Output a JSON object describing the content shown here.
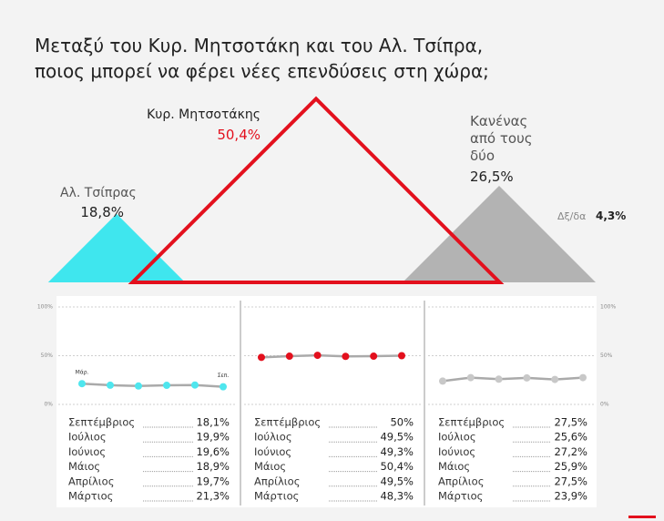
{
  "title": [
    "Μεταξύ του Κυρ. Μητσοτάκη και του Αλ. Τσίπρα,",
    "ποιος μπορεί να φέρει νέες επενδύσεις στη χώρα;"
  ],
  "chart_data": [
    {
      "type": "triangle",
      "categories": [
        "Αλ. Τσίπρας",
        "Κυρ. Μητσοτάκης",
        "Κανένας από τους δύο",
        "Δξ/δα"
      ],
      "values": [
        18.8,
        50.4,
        26.5,
        4.3
      ],
      "value_labels": [
        "18,8%",
        "50,4%",
        "26,5%",
        "4,3%"
      ],
      "colors": [
        "#3fe6ee",
        "#e3101d",
        "#b3b3b3",
        "#888888"
      ],
      "fill": [
        true,
        false,
        true,
        false
      ]
    },
    {
      "type": "line",
      "categories": [
        "Σεπτέμβριος",
        "Ιούλιος",
        "Ιούνιος",
        "Μάιος",
        "Απρίλιος",
        "Μάρτιος"
      ],
      "values": [
        18.1,
        19.9,
        19.6,
        18.9,
        19.7,
        21.3
      ],
      "value_labels": [
        "18,1%",
        "19,9%",
        "19,6%",
        "18,9%",
        "19,7%",
        "21,3%"
      ],
      "color": "#4fe6ee",
      "line_color": "#aaaaaa",
      "start_label": "Μάρ.",
      "end_label": "Σεπ.",
      "ylim": [
        0,
        100
      ],
      "yticks": [
        {
          "value": 0,
          "label": "0%"
        },
        {
          "value": 50,
          "label": "50%"
        },
        {
          "value": 100,
          "label": "100%"
        }
      ],
      "tick_labels_side": "left"
    },
    {
      "type": "line",
      "categories": [
        "Σεπτέμβριος",
        "Ιούλιος",
        "Ιούνιος",
        "Μάιος",
        "Απρίλιος",
        "Μάρτιος"
      ],
      "values": [
        50,
        49.5,
        49.3,
        50.4,
        49.5,
        48.3
      ],
      "value_labels": [
        "50%",
        "49,5%",
        "49,3%",
        "50,4%",
        "49,5%",
        "48,3%"
      ],
      "color": "#e3101d",
      "line_color": "#aaaaaa",
      "ylim": [
        0,
        100
      ],
      "yticks": [
        0,
        50,
        100
      ]
    },
    {
      "type": "line",
      "categories": [
        "Σεπτέμβριος",
        "Ιούλιος",
        "Ιούνιος",
        "Μάιος",
        "Απρίλιος",
        "Μάρτιος"
      ],
      "values": [
        27.5,
        25.6,
        27.2,
        25.9,
        27.5,
        23.9
      ],
      "value_labels": [
        "27,5%",
        "25,6%",
        "27,2%",
        "25,9%",
        "27,5%",
        "23,9%"
      ],
      "color": "#c8c8c8",
      "line_color": "#aaaaaa",
      "ylim": [
        0,
        100
      ],
      "yticks": [
        {
          "value": 0,
          "label": "0%"
        },
        {
          "value": 50,
          "label": "50%"
        },
        {
          "value": 100,
          "label": "100%"
        }
      ],
      "tick_labels_side": "right"
    }
  ]
}
